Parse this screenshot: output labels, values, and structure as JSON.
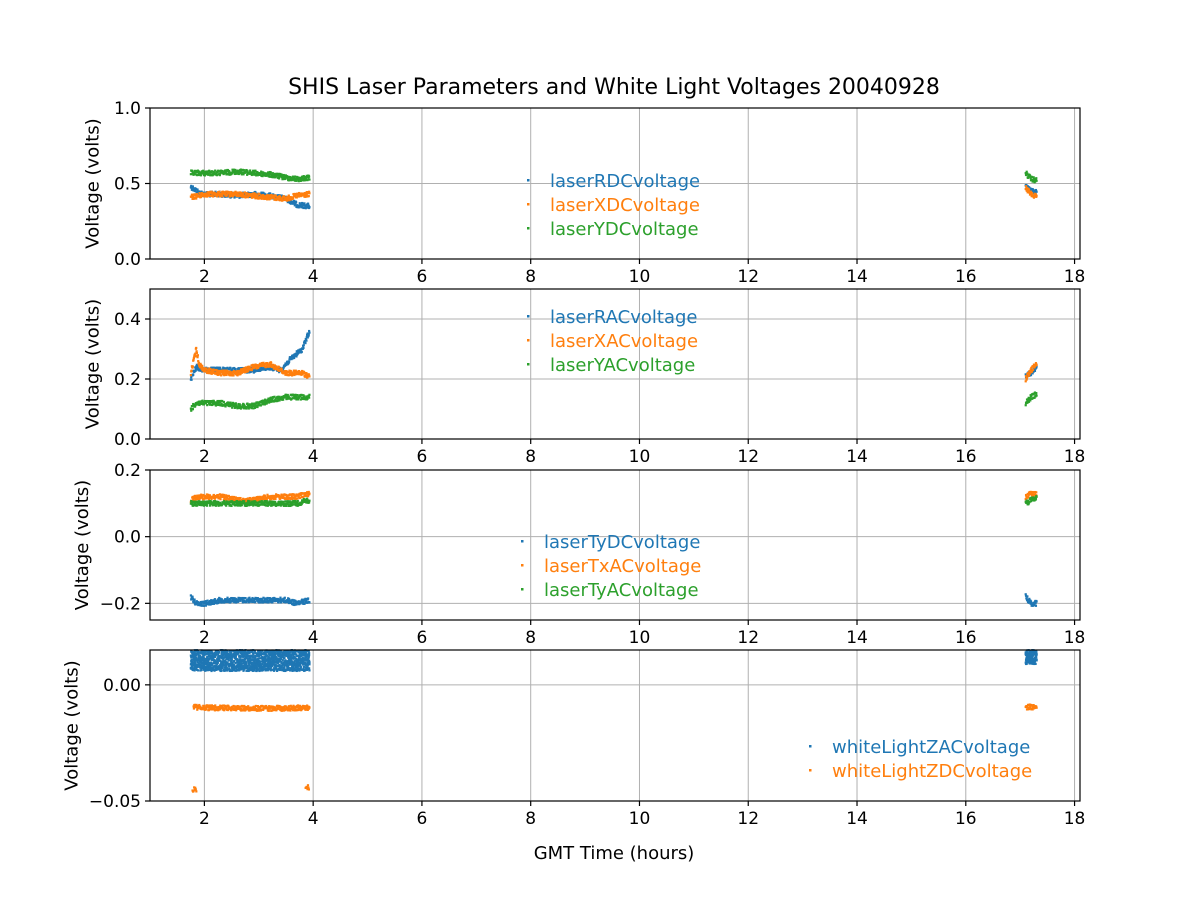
{
  "chart_data": {
    "title": "SHIS Laser Parameters and White Light Voltages 20040928",
    "xlabel": "GMT Time (hours)",
    "xlim": [
      1,
      18.1
    ],
    "xticks": [
      2,
      4,
      6,
      8,
      10,
      12,
      14,
      16,
      18
    ],
    "grid": true,
    "panels": [
      {
        "type": "scatter",
        "ylabel": "Voltage (volts)",
        "ylim": [
          0.0,
          1.0
        ],
        "yticks": [
          0.0,
          0.5,
          1.0
        ],
        "ytick_labels": [
          "0.0",
          "0.5",
          "1.0"
        ],
        "legend_position": "center",
        "series": [
          {
            "name": "laserRDCvoltage",
            "color": "#1f77b4",
            "segments": [
              {
                "x": [
                  1.75,
                  1.9,
                  2.0,
                  2.3,
                  2.6,
                  2.9,
                  3.2,
                  3.5,
                  3.7,
                  3.93
                ],
                "y": [
                  0.48,
                  0.44,
                  0.43,
                  0.43,
                  0.42,
                  0.43,
                  0.42,
                  0.4,
                  0.36,
                  0.35
                ]
              },
              {
                "x": [
                  17.1,
                  17.2,
                  17.3
                ],
                "y": [
                  0.48,
                  0.45,
                  0.44
                ]
              }
            ]
          },
          {
            "name": "laserXDCvoltage",
            "color": "#ff7f0e",
            "segments": [
              {
                "x": [
                  1.75,
                  1.9,
                  2.0,
                  2.3,
                  2.6,
                  2.9,
                  3.2,
                  3.5,
                  3.7,
                  3.93
                ],
                "y": [
                  0.41,
                  0.42,
                  0.43,
                  0.43,
                  0.43,
                  0.42,
                  0.41,
                  0.4,
                  0.42,
                  0.43
                ]
              },
              {
                "x": [
                  17.1,
                  17.2,
                  17.3
                ],
                "y": [
                  0.47,
                  0.43,
                  0.41
                ]
              }
            ]
          },
          {
            "name": "laserYDCvoltage",
            "color": "#2ca02c",
            "segments": [
              {
                "x": [
                  1.75,
                  1.9,
                  2.0,
                  2.3,
                  2.6,
                  2.9,
                  3.2,
                  3.5,
                  3.7,
                  3.93
                ],
                "y": [
                  0.57,
                  0.57,
                  0.57,
                  0.57,
                  0.58,
                  0.57,
                  0.56,
                  0.54,
                  0.53,
                  0.54
                ]
              },
              {
                "x": [
                  17.1,
                  17.2,
                  17.3
                ],
                "y": [
                  0.57,
                  0.53,
                  0.52
                ]
              }
            ]
          }
        ]
      },
      {
        "type": "scatter",
        "ylabel": "Voltage (volts)",
        "ylim": [
          0.0,
          0.5
        ],
        "yticks": [
          0.0,
          0.2,
          0.4
        ],
        "ytick_labels": [
          "0.0",
          "0.2",
          "0.4"
        ],
        "legend_position": "upper center",
        "series": [
          {
            "name": "laserRACvoltage",
            "color": "#1f77b4",
            "segments": [
              {
                "x": [
                  1.75,
                  1.85,
                  2.0,
                  2.3,
                  2.6,
                  2.9,
                  3.2,
                  3.4,
                  3.6,
                  3.8,
                  3.93
                ],
                "y": [
                  0.2,
                  0.24,
                  0.23,
                  0.23,
                  0.23,
                  0.23,
                  0.24,
                  0.23,
                  0.27,
                  0.3,
                  0.36
                ]
              },
              {
                "x": [
                  17.1,
                  17.2,
                  17.3
                ],
                "y": [
                  0.21,
                  0.22,
                  0.24
                ]
              }
            ]
          },
          {
            "name": "laserXACvoltage",
            "color": "#ff7f0e",
            "segments": [
              {
                "x": [
                  1.75,
                  1.85,
                  1.9,
                  2.0,
                  2.3,
                  2.6,
                  2.9,
                  3.2,
                  3.5,
                  3.8,
                  3.93
                ],
                "y": [
                  0.22,
                  0.3,
                  0.25,
                  0.23,
                  0.22,
                  0.22,
                  0.24,
                  0.25,
                  0.22,
                  0.22,
                  0.21
                ]
              },
              {
                "x": [
                  17.1,
                  17.2,
                  17.3
                ],
                "y": [
                  0.2,
                  0.23,
                  0.25
                ]
              }
            ]
          },
          {
            "name": "laserYACvoltage",
            "color": "#2ca02c",
            "segments": [
              {
                "x": [
                  1.75,
                  1.85,
                  2.0,
                  2.3,
                  2.6,
                  2.9,
                  3.2,
                  3.5,
                  3.7,
                  3.93
                ],
                "y": [
                  0.1,
                  0.12,
                  0.12,
                  0.12,
                  0.11,
                  0.11,
                  0.13,
                  0.14,
                  0.14,
                  0.14
                ]
              },
              {
                "x": [
                  17.1,
                  17.2,
                  17.3
                ],
                "y": [
                  0.12,
                  0.14,
                  0.15
                ]
              }
            ]
          }
        ]
      },
      {
        "type": "scatter",
        "ylabel": "Voltage (volts)",
        "ylim": [
          -0.25,
          0.2
        ],
        "yticks": [
          -0.2,
          0.0,
          0.2
        ],
        "ytick_labels": [
          "−0.2",
          "0.0",
          "0.2"
        ],
        "legend_position": "lower center",
        "series": [
          {
            "name": "laserTyDCvoltage",
            "color": "#1f77b4",
            "segments": [
              {
                "x": [
                  1.75,
                  1.85,
                  2.0,
                  2.3,
                  2.6,
                  2.9,
                  3.2,
                  3.5,
                  3.7,
                  3.93
                ],
                "y": [
                  -0.18,
                  -0.2,
                  -0.2,
                  -0.19,
                  -0.19,
                  -0.19,
                  -0.19,
                  -0.19,
                  -0.2,
                  -0.19
                ]
              },
              {
                "x": [
                  17.1,
                  17.2,
                  17.3
                ],
                "y": [
                  -0.18,
                  -0.2,
                  -0.2
                ]
              }
            ]
          },
          {
            "name": "laserTxACvoltage",
            "color": "#ff7f0e",
            "segments": [
              {
                "x": [
                  1.75,
                  1.85,
                  2.0,
                  2.3,
                  2.6,
                  2.9,
                  3.2,
                  3.5,
                  3.7,
                  3.93
                ],
                "y": [
                  0.11,
                  0.12,
                  0.12,
                  0.12,
                  0.11,
                  0.11,
                  0.12,
                  0.12,
                  0.12,
                  0.13
                ]
              },
              {
                "x": [
                  17.1,
                  17.2,
                  17.3
                ],
                "y": [
                  0.12,
                  0.13,
                  0.13
                ]
              }
            ]
          },
          {
            "name": "laserTyACvoltage",
            "color": "#2ca02c",
            "segments": [
              {
                "x": [
                  1.75,
                  1.85,
                  2.0,
                  2.3,
                  2.6,
                  2.9,
                  3.2,
                  3.5,
                  3.7,
                  3.93
                ],
                "y": [
                  0.1,
                  0.1,
                  0.1,
                  0.1,
                  0.1,
                  0.1,
                  0.1,
                  0.1,
                  0.1,
                  0.11
                ]
              },
              {
                "x": [
                  17.1,
                  17.2,
                  17.3
                ],
                "y": [
                  0.1,
                  0.11,
                  0.12
                ]
              }
            ]
          }
        ]
      },
      {
        "type": "scatter",
        "ylabel": "Voltage (volts)",
        "ylim": [
          -0.05,
          0.015
        ],
        "yticks": [
          -0.05,
          0.0
        ],
        "ytick_labels": [
          "−0.05",
          "0.00"
        ],
        "legend_position": "lower right",
        "series": [
          {
            "name": "whiteLightZACvoltage",
            "color": "#1f77b4",
            "band": true,
            "segments": [
              {
                "x": [
                  1.75,
                  2.0,
                  2.3,
                  2.6,
                  2.9,
                  3.2,
                  3.5,
                  3.7,
                  3.93
                ],
                "y_low": [
                  0.006,
                  0.006,
                  0.006,
                  0.006,
                  0.006,
                  0.006,
                  0.006,
                  0.006,
                  0.006
                ],
                "y_high": [
                  0.015,
                  0.015,
                  0.015,
                  0.015,
                  0.015,
                  0.015,
                  0.015,
                  0.015,
                  0.015
                ]
              },
              {
                "x": [
                  17.1,
                  17.2,
                  17.3
                ],
                "y_low": [
                  0.009,
                  0.009,
                  0.009
                ],
                "y_high": [
                  0.015,
                  0.015,
                  0.015
                ]
              }
            ]
          },
          {
            "name": "whiteLightZDCvoltage",
            "color": "#ff7f0e",
            "segments": [
              {
                "x": [
                  1.8,
                  2.0,
                  2.3,
                  2.6,
                  2.9,
                  3.2,
                  3.5,
                  3.7,
                  3.93
                ],
                "y": [
                  -0.0095,
                  -0.0098,
                  -0.0099,
                  -0.01,
                  -0.0101,
                  -0.0101,
                  -0.01,
                  -0.0099,
                  -0.0098
                ]
              },
              {
                "x": [
                  17.1,
                  17.2,
                  17.3
                ],
                "y": [
                  -0.0095,
                  -0.0095,
                  -0.0095
                ]
              }
            ],
            "outliers": [
              {
                "x": [
                  1.78,
                  1.85
                ],
                "y": [
                  -0.045,
                  -0.045
                ]
              },
              {
                "x": [
                  3.86,
                  3.92
                ],
                "y": [
                  -0.044,
                  -0.044
                ]
              }
            ]
          }
        ]
      }
    ]
  }
}
